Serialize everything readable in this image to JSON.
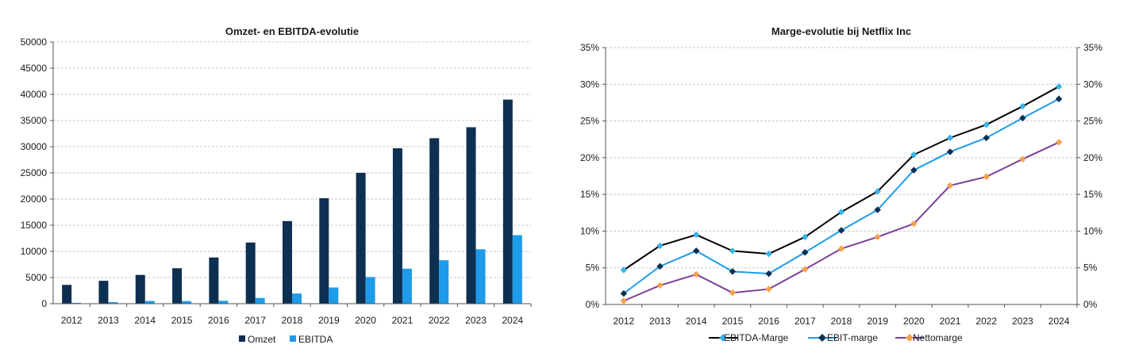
{
  "chart_data": [
    {
      "type": "bar",
      "title": "Omzet- en EBITDA-evolutie",
      "categories": [
        "2012",
        "2013",
        "2014",
        "2015",
        "2016",
        "2017",
        "2018",
        "2019",
        "2020",
        "2021",
        "2022",
        "2023",
        "2024"
      ],
      "series": [
        {
          "name": "Omzet",
          "color": "#0d2f52",
          "values": [
            3600,
            4380,
            5500,
            6780,
            8830,
            11690,
            15790,
            20160,
            25000,
            29700,
            31620,
            33720,
            39000
          ]
        },
        {
          "name": "EBITDA",
          "color": "#1e9be9",
          "values": [
            170,
            300,
            520,
            500,
            560,
            1100,
            1950,
            3100,
            5100,
            6700,
            8300,
            10400,
            13100
          ]
        }
      ],
      "ylim": [
        0,
        50000
      ],
      "yticks": [
        "0",
        "5000",
        "10000",
        "15000",
        "20000",
        "25000",
        "30000",
        "35000",
        "40000",
        "45000",
        "50000"
      ],
      "grid": true,
      "legend": "bottom"
    },
    {
      "type": "line",
      "title": "Marge-evolutie bij Netflix Inc",
      "categories": [
        "2012",
        "2013",
        "2014",
        "2015",
        "2016",
        "2017",
        "2018",
        "2019",
        "2020",
        "2021",
        "2022",
        "2023",
        "2024"
      ],
      "series": [
        {
          "name": "EBITDA-Marge",
          "line_color": "#000000",
          "marker_color": "#3ab3ea",
          "values": [
            4.7,
            8.0,
            9.5,
            7.3,
            6.9,
            9.2,
            12.6,
            15.4,
            20.4,
            22.7,
            24.5,
            27.0,
            29.7
          ]
        },
        {
          "name": "EBIT-marge",
          "line_color": "#1e9be9",
          "marker_color": "#0d2f52",
          "values": [
            1.5,
            5.2,
            7.3,
            4.5,
            4.2,
            7.1,
            10.1,
            12.9,
            18.3,
            20.8,
            22.7,
            25.4,
            28.0
          ]
        },
        {
          "name": "Nettomarge",
          "line_color": "#7b3f98",
          "marker_color": "#f5a24b",
          "values": [
            0.5,
            2.6,
            4.1,
            1.6,
            2.1,
            4.8,
            7.6,
            9.2,
            11.0,
            16.2,
            17.4,
            19.8,
            22.1
          ]
        }
      ],
      "ylim": [
        0,
        35
      ],
      "yticks": [
        "0%",
        "5%",
        "10%",
        "15%",
        "20%",
        "25%",
        "30%",
        "35%"
      ],
      "grid": true,
      "legend": "bottom"
    }
  ]
}
